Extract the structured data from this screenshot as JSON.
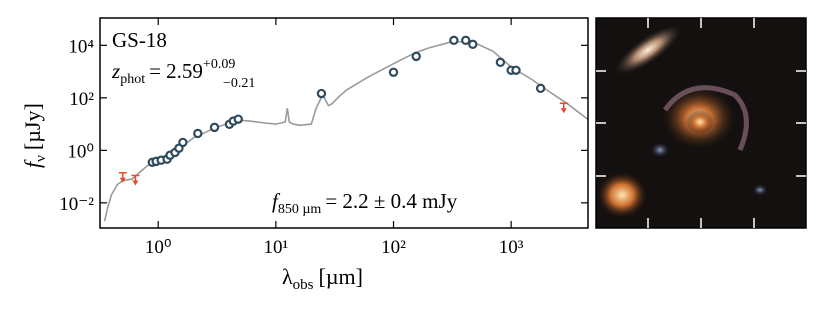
{
  "chart_data": {
    "type": "sed",
    "title": "GS-18",
    "redshift": {
      "symbol": "z",
      "subscript": "phot",
      "equals": "= 2.59",
      "upper_error": "+0.09",
      "lower_error": "−0.21"
    },
    "flux_annotation": {
      "symbol": "f",
      "subscript": "850 µm",
      "text": "= 2.2 ± 0.4 mJy"
    },
    "xlabel": {
      "symbol": "λ",
      "subscript": "obs",
      "unit": "[µm]"
    },
    "ylabel": {
      "symbol": "f",
      "subscript": "ν",
      "unit": "[µJy]"
    },
    "log_x": true,
    "log_y": true,
    "xlim": [
      0.32,
      4500
    ],
    "ylim": [
      0.0011,
      110000
    ],
    "xticks": [
      {
        "value": 1,
        "label": "10⁰"
      },
      {
        "value": 10,
        "label": "10¹"
      },
      {
        "value": 100,
        "label": "10²"
      },
      {
        "value": 1000,
        "label": "10³"
      }
    ],
    "yticks": [
      {
        "value": 0.01,
        "label": "10⁻²"
      },
      {
        "value": 1,
        "label": "10⁰"
      },
      {
        "value": 100,
        "label": "10²"
      },
      {
        "value": 10000,
        "label": "10⁴"
      }
    ],
    "model": {
      "color": "#9a9a9a",
      "x": [
        0.35,
        0.37,
        0.4,
        0.45,
        0.5,
        0.6,
        0.7,
        0.8,
        1.0,
        1.2,
        1.5,
        2,
        3,
        4,
        5,
        6,
        7,
        8,
        10,
        12,
        12.5,
        13,
        14,
        16,
        20,
        22,
        25,
        28,
        30,
        35,
        40,
        60,
        100,
        150,
        200,
        300,
        350,
        500,
        700,
        1000,
        1500,
        2000,
        3000,
        4500
      ],
      "values": [
        0.002,
        0.006,
        0.02,
        0.05,
        0.07,
        0.08,
        0.15,
        0.25,
        0.45,
        0.7,
        1.2,
        3,
        7,
        11,
        14,
        13,
        12,
        11,
        10,
        12,
        40,
        12,
        10,
        9,
        10,
        40,
        130,
        50,
        60,
        120,
        200,
        600,
        2000,
        5000,
        8000,
        13000,
        14000,
        12000,
        6000,
        1500,
        500,
        200,
        60,
        15
      ]
    },
    "photometry": {
      "color": "#2e4a5c",
      "x": [
        0.89,
        0.96,
        1.06,
        1.19,
        1.26,
        1.39,
        1.5,
        1.62,
        2.17,
        3.01,
        4.03,
        4.35,
        4.79,
        24.4,
        100,
        156,
        326,
        411,
        472,
        810,
        1000,
        1100,
        1780
      ],
      "values": [
        0.35,
        0.38,
        0.42,
        0.46,
        0.65,
        0.83,
        1.2,
        2.0,
        4.4,
        7.5,
        9.8,
        13,
        15.4,
        146,
        940,
        3800,
        15500,
        15500,
        10900,
        2250,
        1120,
        1120,
        230
      ]
    },
    "upper_limits": {
      "color": "#e8492a",
      "x": [
        0.5,
        0.64,
        2800
      ],
      "values": [
        0.14,
        0.11,
        62
      ]
    }
  }
}
